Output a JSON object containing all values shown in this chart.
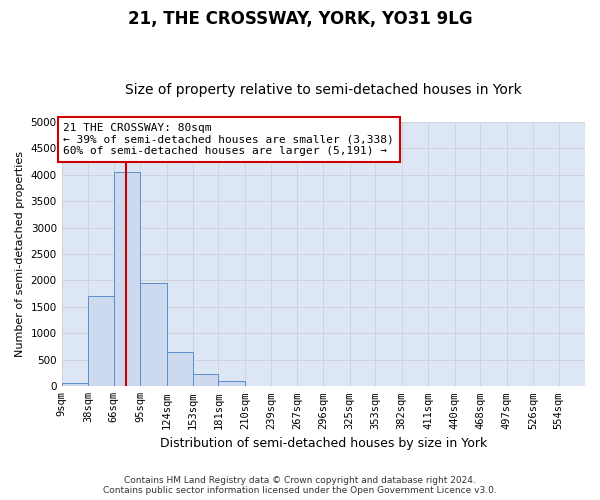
{
  "title": "21, THE CROSSWAY, YORK, YO31 9LG",
  "subtitle": "Size of property relative to semi-detached houses in York",
  "xlabel": "Distribution of semi-detached houses by size in York",
  "ylabel": "Number of semi-detached properties",
  "property_size": 80,
  "property_label": "21 THE CROSSWAY: 80sqm",
  "pct_smaller": 39,
  "pct_larger": 60,
  "n_smaller": 3338,
  "n_larger": 5191,
  "bin_edges": [
    9,
    38,
    66,
    95,
    124,
    153,
    181,
    210,
    239,
    267,
    296,
    325,
    353,
    382,
    411,
    440,
    468,
    497,
    526,
    554,
    583
  ],
  "bin_counts": [
    60,
    1700,
    4050,
    1950,
    650,
    230,
    100,
    0,
    0,
    0,
    0,
    0,
    0,
    0,
    0,
    0,
    0,
    0,
    0,
    0
  ],
  "bar_facecolor": "#ccd9ee",
  "bar_edgecolor": "#5b8dc8",
  "line_color": "#cc0000",
  "annotation_box_color": "#cc0000",
  "grid_color": "#cccccc",
  "bg_color": "#dce6f5",
  "background_color": "#ffffff",
  "ylim": [
    0,
    5000
  ],
  "yticks": [
    0,
    500,
    1000,
    1500,
    2000,
    2500,
    3000,
    3500,
    4000,
    4500,
    5000
  ],
  "footer": "Contains HM Land Registry data © Crown copyright and database right 2024.\nContains public sector information licensed under the Open Government Licence v3.0.",
  "title_fontsize": 12,
  "subtitle_fontsize": 10,
  "tick_label_fontsize": 7.5,
  "ylabel_fontsize": 8,
  "xlabel_fontsize": 9,
  "ann_fontsize": 8
}
